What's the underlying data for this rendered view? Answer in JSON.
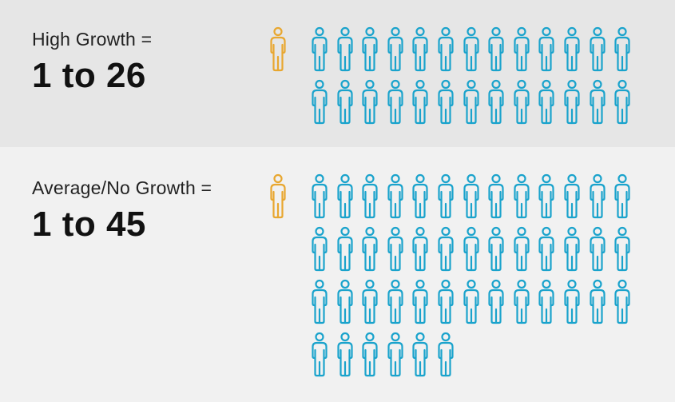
{
  "colors": {
    "highlight": "#e8a730",
    "crowd": "#1aa3cc",
    "panel_high_bg": "#e6e6e6",
    "panel_avg_bg": "#f1f1f1"
  },
  "icon": "person-icon",
  "groups": [
    {
      "id": "high",
      "label": "High Growth =",
      "ratio": "1 to 26",
      "count": 26
    },
    {
      "id": "avg",
      "label": "Average/No Growth =",
      "ratio": "1 to 45",
      "count": 45
    }
  ]
}
